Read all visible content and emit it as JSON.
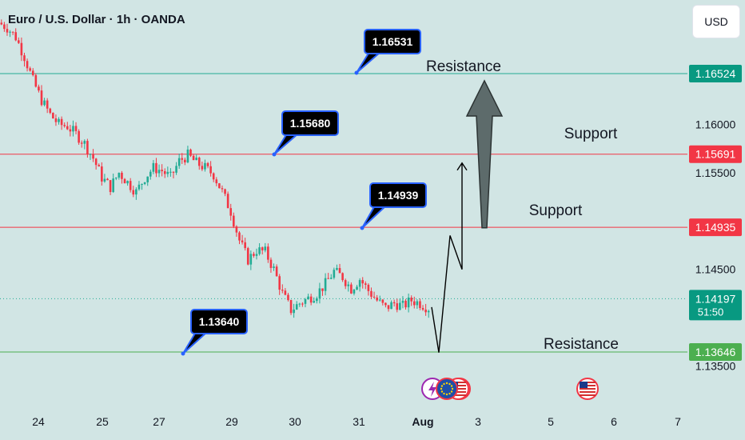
{
  "title": "Euro / U.S. Dollar · 1h · OANDA",
  "currency": "USD",
  "colors": {
    "background": "#d1e5e4",
    "up_candle": "#22ab94",
    "down_candle": "#f23645",
    "resistance_line": "#22ab94",
    "support_line": "#f23645",
    "low_line": "#4caf50",
    "callout_border": "#2962ff",
    "callout_fill": "#000000",
    "arrow_fill": "#5d6b6b"
  },
  "chart_data": {
    "type": "candlestick",
    "symbol": "EURUSD",
    "timeframe": "1h",
    "x_tick_labels": [
      "24",
      "25",
      "27",
      "29",
      "30",
      "31",
      "Aug",
      "3",
      "5",
      "6",
      "7"
    ],
    "y_tick_labels": [
      "1.16000",
      "1.15500",
      "1.14500",
      "1.13500"
    ],
    "ylim": [
      1.1325,
      1.1705
    ],
    "close_path": [
      1.1705,
      1.17,
      1.169,
      1.167,
      1.1645,
      1.1625,
      1.161,
      1.16,
      1.1598,
      1.159,
      1.158,
      1.1565,
      1.1545,
      1.1535,
      1.155,
      1.154,
      1.153,
      1.1545,
      1.1555,
      1.1552,
      1.1545,
      1.1562,
      1.1568,
      1.156,
      1.1555,
      1.1548,
      1.153,
      1.151,
      1.148,
      1.146,
      1.147,
      1.1468,
      1.145,
      1.1425,
      1.1408,
      1.1415,
      1.142,
      1.1425,
      1.1435,
      1.1448,
      1.1442,
      1.143,
      1.144,
      1.1428,
      1.1418,
      1.141,
      1.1415,
      1.1412,
      1.1418,
      1.1415,
      1.141
    ],
    "horizontal_levels": [
      {
        "price": 1.16524,
        "label": "1.16524",
        "kind": "resistance",
        "style": "solid"
      },
      {
        "price": 1.15691,
        "label": "1.15691",
        "kind": "support",
        "style": "solid"
      },
      {
        "price": 1.14935,
        "label": "1.14935",
        "kind": "support",
        "style": "solid"
      },
      {
        "price": 1.14197,
        "label": "1.14197",
        "kind": "current",
        "style": "dotted",
        "countdown": "51:50"
      },
      {
        "price": 1.13646,
        "label": "1.13646",
        "kind": "low",
        "style": "solid"
      }
    ],
    "callouts": [
      {
        "text": "1.16531"
      },
      {
        "text": "1.15680"
      },
      {
        "text": "1.14939"
      },
      {
        "text": "1.13640"
      }
    ],
    "annotations": [
      {
        "text": "Resistance",
        "near_level": "1.16524"
      },
      {
        "text": "Support",
        "near_level": "1.15691"
      },
      {
        "text": "Support",
        "near_level": "1.14935"
      },
      {
        "text": "Resistance",
        "near_level": "1.13646"
      }
    ],
    "projection_path": [
      1.1411,
      1.1364,
      1.1485,
      1.145,
      1.156
    ],
    "big_arrow": {
      "from": 1.1493,
      "to": 1.1645,
      "direction": "up"
    },
    "event_icons": [
      "lightning-event",
      "eu-flag",
      "us-flag",
      "us-flag"
    ],
    "grid": false
  }
}
